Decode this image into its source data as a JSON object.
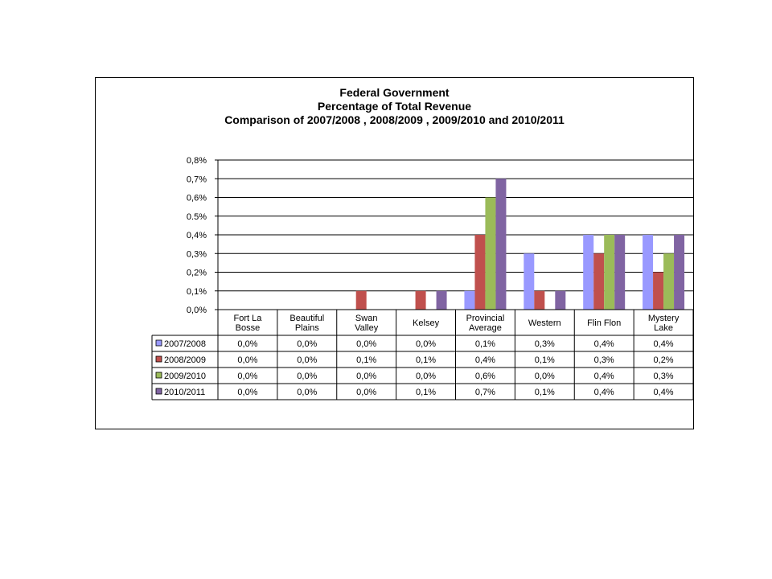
{
  "chart_data": {
    "type": "bar",
    "title_lines": [
      "Federal Government",
      "Percentage of Total Revenue",
      "Comparison of 2007/2008 , 2008/2009 , 2009/2010 and 2010/2011"
    ],
    "categories": [
      [
        "Fort La",
        "Bosse"
      ],
      [
        "Beautiful",
        "Plains"
      ],
      [
        "Swan",
        "Valley"
      ],
      [
        "Kelsey"
      ],
      [
        "Provincial",
        "Average"
      ],
      [
        "Western"
      ],
      [
        "Flin Flon"
      ],
      [
        "Mystery",
        "Lake"
      ]
    ],
    "yticks": [
      "0,0%",
      "0,1%",
      "0,2%",
      "0,3%",
      "0,4%",
      "0.5%",
      "0,6%",
      "0,7%",
      "0,8%"
    ],
    "ylim": [
      0,
      0.8
    ],
    "grid": true,
    "legend": "data-table",
    "series": [
      {
        "name": "2007/2008",
        "color": "#9999ff",
        "values": [
          0.0,
          0.0,
          0.0,
          0.0,
          0.1,
          0.3,
          0.4,
          0.4
        ],
        "labels": [
          "0,0%",
          "0,0%",
          "0,0%",
          "0,0%",
          "0,1%",
          "0,3%",
          "0,4%",
          "0,4%"
        ]
      },
      {
        "name": "2008/2009",
        "color": "#c0504d",
        "values": [
          0.0,
          0.0,
          0.1,
          0.1,
          0.4,
          0.1,
          0.3,
          0.2
        ],
        "labels": [
          "0,0%",
          "0,0%",
          "0,1%",
          "0,1%",
          "0,4%",
          "0,1%",
          "0,3%",
          "0,2%"
        ]
      },
      {
        "name": "2009/2010",
        "color": "#9bbb59",
        "values": [
          0.0,
          0.0,
          0.0,
          0.0,
          0.6,
          0.0,
          0.4,
          0.3
        ],
        "labels": [
          "0,0%",
          "0,0%",
          "0,0%",
          "0,0%",
          "0,6%",
          "0,0%",
          "0,4%",
          "0,3%"
        ]
      },
      {
        "name": "2010/2011",
        "color": "#8064a2",
        "values": [
          0.0,
          0.0,
          0.0,
          0.1,
          0.7,
          0.1,
          0.4,
          0.4
        ],
        "labels": [
          "0,0%",
          "0,0%",
          "0,0%",
          "0,1%",
          "0,7%",
          "0,1%",
          "0,4%",
          "0,4%"
        ]
      }
    ]
  }
}
